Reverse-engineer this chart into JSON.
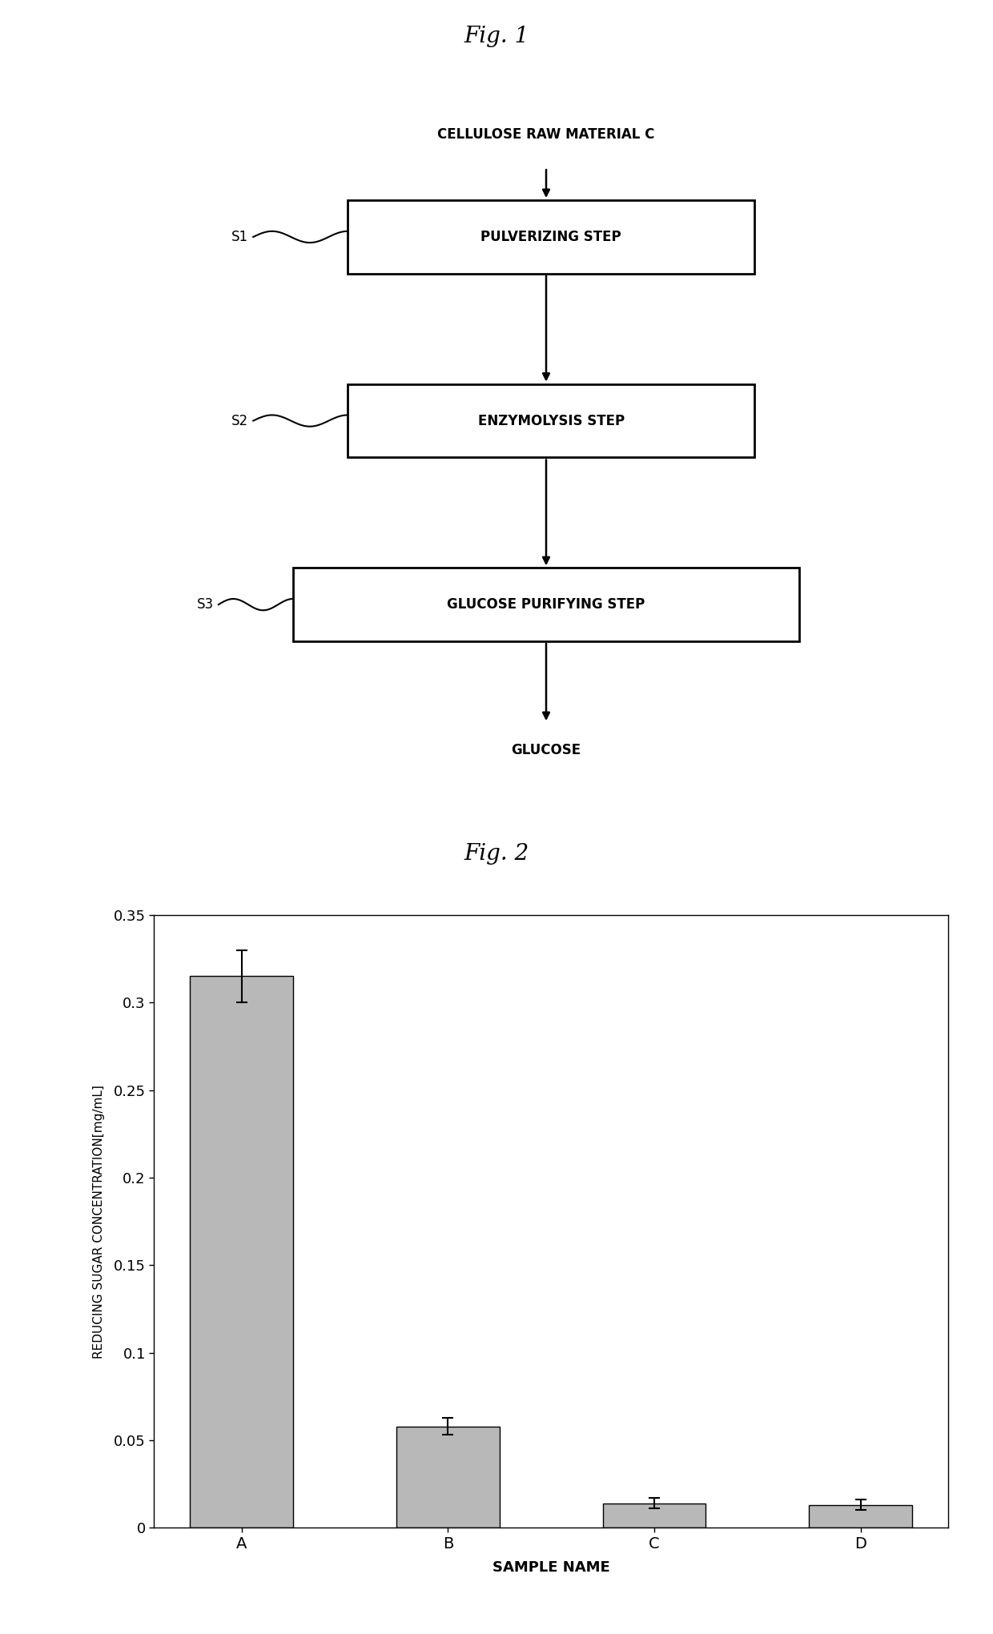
{
  "fig1_title": "Fig. 1",
  "fig2_title": "Fig. 2",
  "flowchart": {
    "top_label": "CELLULOSE RAW MATERIAL C",
    "steps": [
      {
        "label": "PULVERIZING STEP",
        "tag": "S1"
      },
      {
        "label": "ENZYMOLYSIS STEP",
        "tag": "S2"
      },
      {
        "label": "GLUCOSE PURIFYING STEP",
        "tag": "S3"
      }
    ],
    "bottom_label": "GLUCOSE"
  },
  "bar_chart": {
    "categories": [
      "A",
      "B",
      "C",
      "D"
    ],
    "values": [
      0.315,
      0.058,
      0.014,
      0.013
    ],
    "errors": [
      0.015,
      0.005,
      0.003,
      0.003
    ],
    "bar_color": "#b8b8b8",
    "bar_edgecolor": "#000000",
    "xlabel": "SAMPLE NAME",
    "ylabel": "REDUCING SUGAR CONCENTRATION[mg/mL]",
    "ylim": [
      0,
      0.35
    ],
    "yticks": [
      0,
      0.05,
      0.1,
      0.15,
      0.2,
      0.25,
      0.3,
      0.35
    ],
    "ytick_labels": [
      "0",
      "0.05",
      "0.1",
      "0.15",
      "0.2",
      "0.25",
      "0.3",
      "0.35"
    ],
    "bar_width": 0.5
  },
  "background_color": "#ffffff"
}
